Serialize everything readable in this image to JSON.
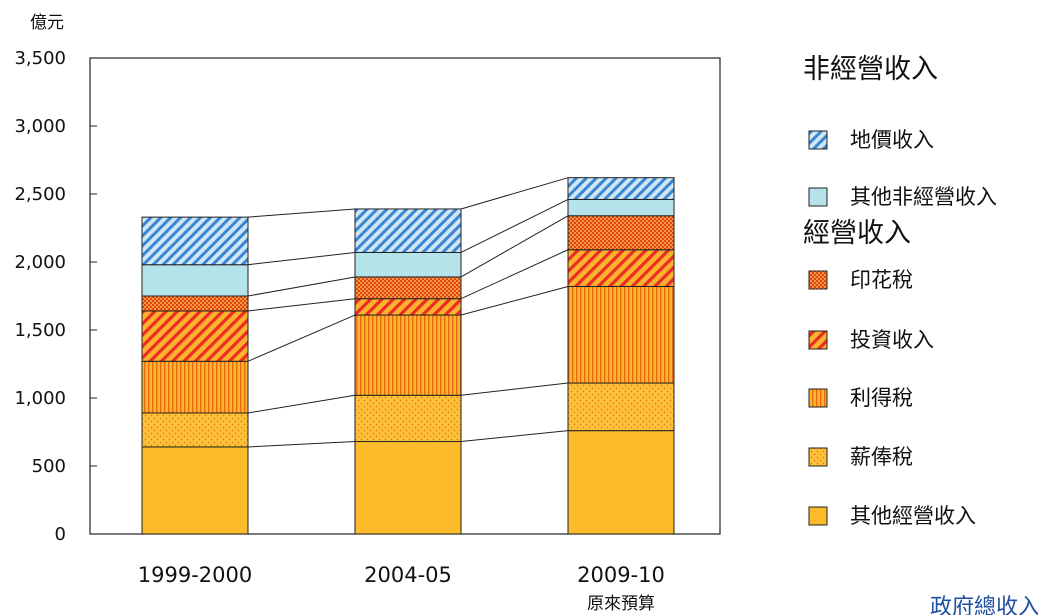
{
  "chart_data": {
    "type": "bar",
    "stacked": true,
    "unit_label": "億元",
    "categories": [
      "1999-2000",
      "2004-05",
      "2009-10"
    ],
    "category_sublabels": [
      "",
      "",
      "原來預算"
    ],
    "ylim": [
      0,
      3500
    ],
    "yticks": [
      0,
      500,
      1000,
      1500,
      2000,
      2500,
      3000,
      3500
    ],
    "ytick_labels": [
      "0",
      "500",
      "1,000",
      "1,500",
      "2,000",
      "2,500",
      "3,000",
      "3,500"
    ],
    "series": [
      {
        "name": "其他經營收入",
        "values": [
          640,
          680,
          760
        ],
        "group": "經營收入",
        "color": "#fbbb2a",
        "pattern": "solid"
      },
      {
        "name": "薪俸稅",
        "values": [
          250,
          340,
          350
        ],
        "group": "經營收入",
        "color": "#fbbb2a",
        "pattern": "dots"
      },
      {
        "name": "利得稅",
        "values": [
          380,
          590,
          710
        ],
        "group": "經營收入",
        "color": "#f7a11f",
        "pattern": "vertical"
      },
      {
        "name": "投資收入",
        "values": [
          370,
          120,
          270
        ],
        "group": "經營收入",
        "color": "#f7941d",
        "pattern": "diagonal-red"
      },
      {
        "name": "印花稅",
        "values": [
          110,
          160,
          250
        ],
        "group": "經營收入",
        "color": "#f47c1f",
        "pattern": "crosshatch"
      },
      {
        "name": "其他非經營收入",
        "values": [
          230,
          180,
          120
        ],
        "group": "非經營收入",
        "color": "#b5e3ea",
        "pattern": "solid"
      },
      {
        "name": "地價收入",
        "values": [
          350,
          320,
          160
        ],
        "group": "非經營收入",
        "color": "#7fb3e0",
        "pattern": "diagonal-blue"
      }
    ],
    "legend": {
      "placement": "right",
      "groups": [
        {
          "title": "非經營收入",
          "items": [
            "地價收入",
            "其他非經營收入"
          ]
        },
        {
          "title": "經營收入",
          "items": [
            "印花稅",
            "投資收入",
            "利得稅",
            "薪俸稅",
            "其他經營收入"
          ]
        }
      ]
    },
    "connector_lines": true,
    "grid": false
  },
  "corner_text": "政府總收入"
}
